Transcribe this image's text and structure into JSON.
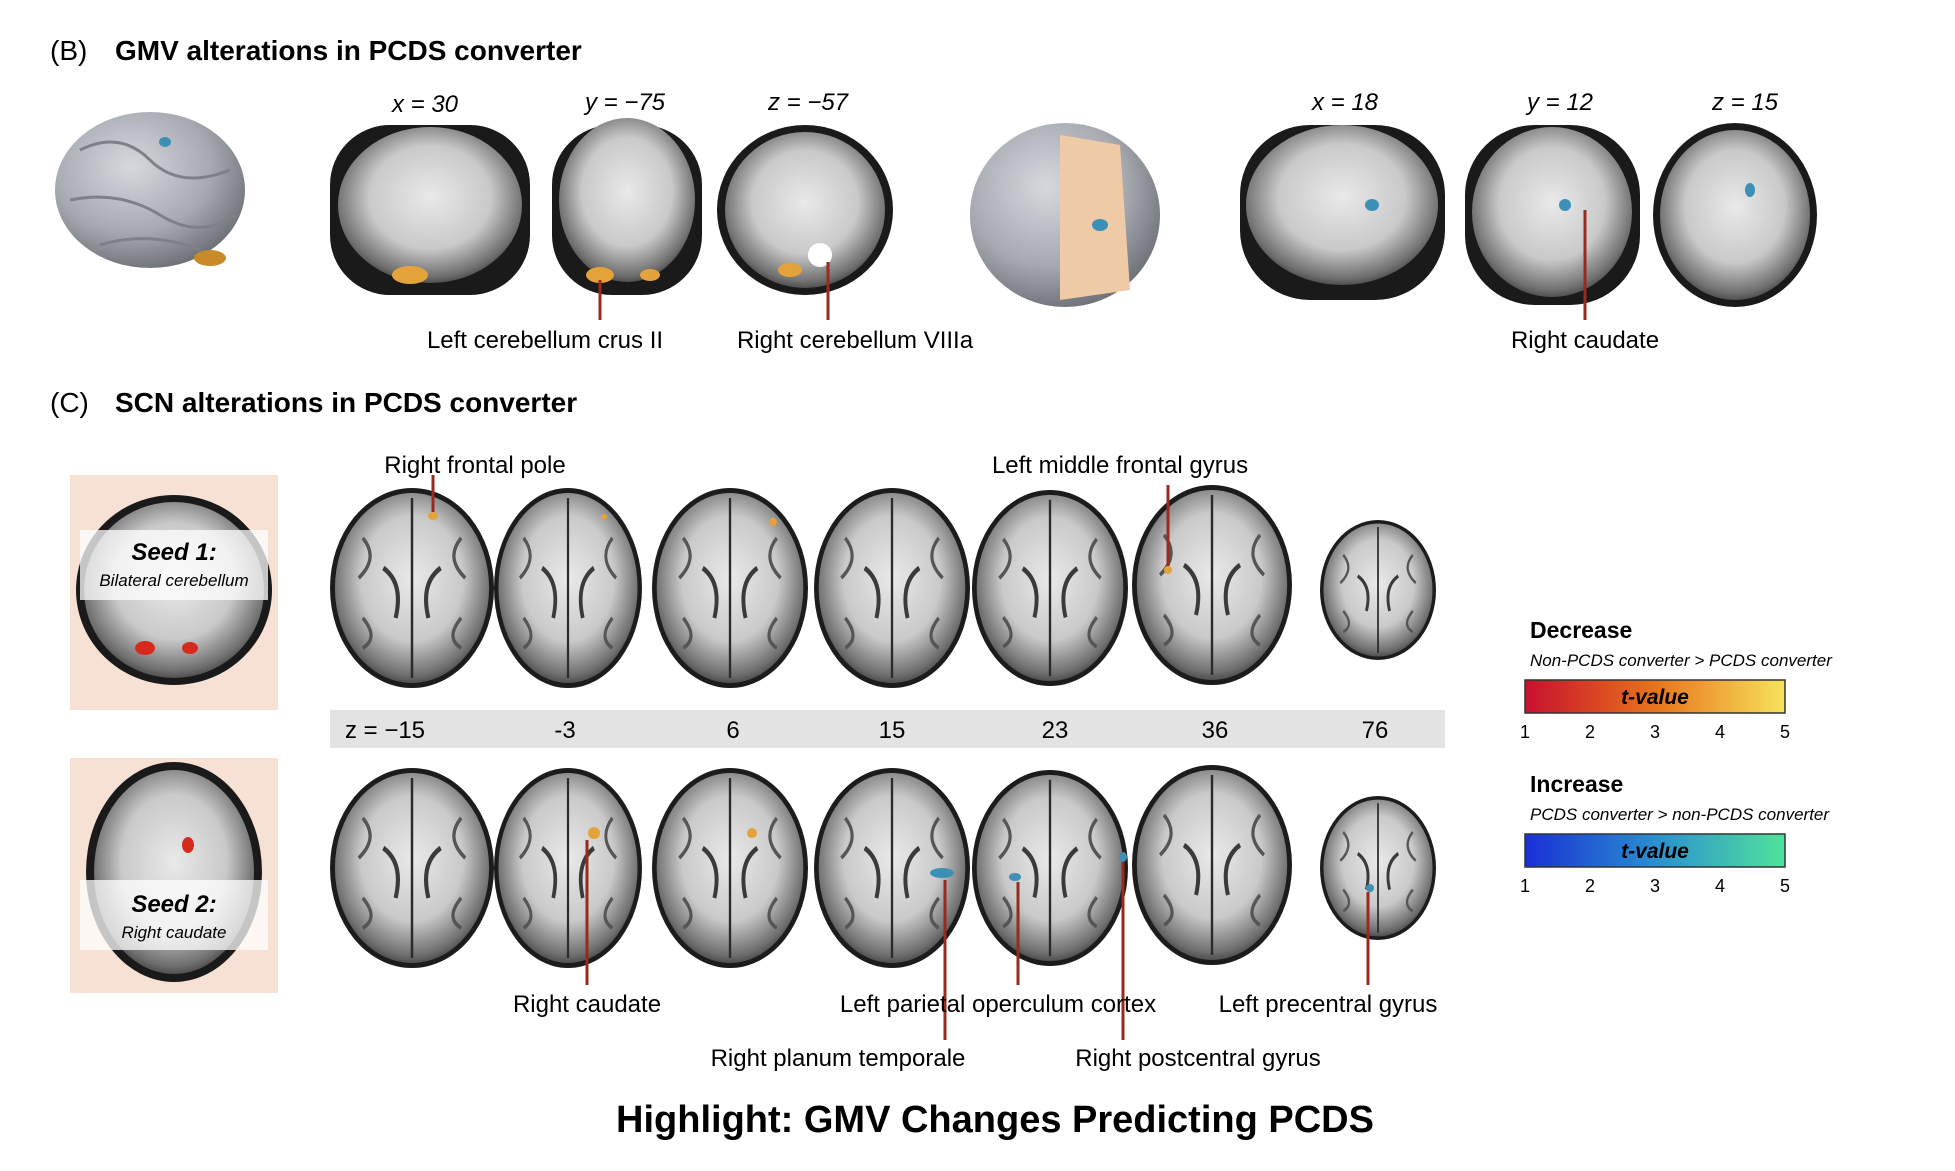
{
  "panel_b": {
    "letter": "(B)",
    "title": "GMV alterations in PCDS converter",
    "coords": [
      "x = 30",
      "y = −75",
      "z = −57",
      "x = 18",
      "y = 12",
      "z = 15"
    ],
    "labels": [
      "Left cerebellum crus II",
      "Right cerebellum VIIIa",
      "Right caudate"
    ]
  },
  "panel_c": {
    "letter": "(C)",
    "title": "SCN alterations in PCDS converter",
    "seed1_title": "Seed 1:",
    "seed1_sub": "Bilateral cerebellum",
    "seed2_title": "Seed 2:",
    "seed2_sub": "Right caudate",
    "z_values": [
      "z = −15",
      "-3",
      "6",
      "15",
      "23",
      "36",
      "76"
    ],
    "top_labels": [
      "Right frontal pole",
      "Left middle frontal gyrus"
    ],
    "bottom_labels": [
      "Right caudate",
      "Left parietal operculum cortex",
      "Left precentral gyrus",
      "Right planum temporale",
      "Right postcentral gyrus"
    ]
  },
  "legend": {
    "decrease_title": "Decrease",
    "decrease_sub": "Non-PCDS converter > PCDS converter",
    "increase_title": "Increase",
    "increase_sub": "PCDS converter > non-PCDS converter",
    "bar_label": "t-value",
    "ticks": [
      "1",
      "2",
      "3",
      "4",
      "5"
    ],
    "decrease_colors": [
      "#c8102e",
      "#e8731c",
      "#f7e35a"
    ],
    "increase_colors": [
      "#1a2fd6",
      "#2a8fd0",
      "#4fe39a"
    ]
  },
  "highlight": "Highlight: GMV Changes Predicting PCDS"
}
